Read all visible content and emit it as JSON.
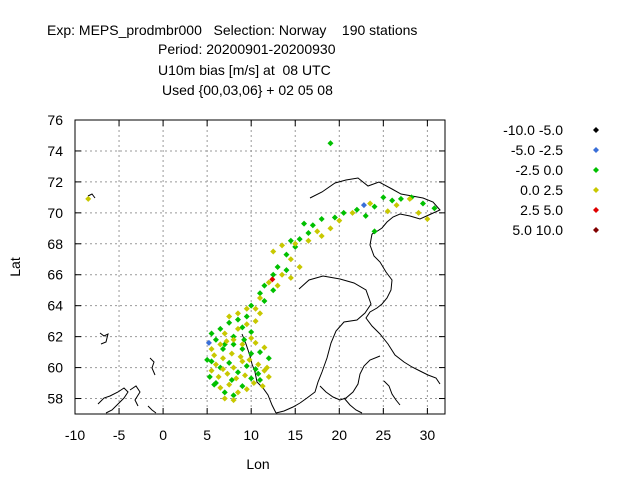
{
  "title": {
    "line1": "Exp: MEPS_prodmbr000   Selection: Norway    190 stations",
    "line2": "Period: 20200901-20200930",
    "line3": "U10m bias [m/s] at  08 UTC",
    "line4": "Used {00,03,06} + 02 05 08"
  },
  "chart_data": {
    "type": "scatter",
    "xlabel": "Lon",
    "ylabel": "Lat",
    "xlim": [
      -10,
      32
    ],
    "ylim": [
      57,
      76
    ],
    "xticks": [
      -10,
      -5,
      0,
      5,
      10,
      15,
      20,
      25,
      30
    ],
    "yticks": [
      58,
      60,
      62,
      64,
      66,
      68,
      70,
      72,
      74,
      76
    ],
    "grid": true,
    "legend_position": "right",
    "series": [
      {
        "name": "-10.0 -5.0",
        "color": "#000000",
        "points": []
      },
      {
        "name": "-5.0 -2.5",
        "color": "#3a6fd8",
        "points": [
          [
            22.8,
            70.5
          ],
          [
            5.2,
            61.6
          ]
        ]
      },
      {
        "name": "-2.5 0.0",
        "color": "#00c000",
        "points": [
          [
            19.0,
            74.5
          ],
          [
            25.0,
            71.0
          ],
          [
            26.0,
            70.8
          ],
          [
            27.0,
            70.9
          ],
          [
            28.2,
            71.0
          ],
          [
            29.5,
            70.6
          ],
          [
            30.8,
            70.3
          ],
          [
            24.0,
            70.4
          ],
          [
            23.0,
            69.8
          ],
          [
            24.0,
            68.8
          ],
          [
            22.0,
            70.2
          ],
          [
            20.5,
            70.0
          ],
          [
            19.5,
            69.7
          ],
          [
            18.0,
            69.6
          ],
          [
            17.0,
            69.2
          ],
          [
            16.5,
            68.7
          ],
          [
            15.5,
            68.3
          ],
          [
            14.5,
            68.2
          ],
          [
            16.0,
            69.3
          ],
          [
            15.0,
            67.8
          ],
          [
            14.0,
            67.3
          ],
          [
            13.0,
            66.5
          ],
          [
            12.5,
            66.0
          ],
          [
            14.0,
            66.3
          ],
          [
            11.5,
            65.3
          ],
          [
            12.5,
            65.0
          ],
          [
            11.0,
            64.8
          ],
          [
            10.0,
            64.0
          ],
          [
            11.5,
            64.3
          ],
          [
            9.5,
            63.3
          ],
          [
            8.5,
            63.1
          ],
          [
            7.5,
            62.9
          ],
          [
            6.5,
            62.5
          ],
          [
            5.5,
            62.2
          ],
          [
            6.0,
            61.8
          ],
          [
            7.0,
            61.5
          ],
          [
            8.0,
            61.5
          ],
          [
            9.0,
            61.2
          ],
          [
            10.0,
            60.9
          ],
          [
            11.0,
            61.0
          ],
          [
            12.0,
            60.6
          ],
          [
            5.5,
            60.4
          ],
          [
            6.5,
            60.0
          ],
          [
            5.3,
            59.4
          ],
          [
            6.0,
            59.0
          ],
          [
            7.0,
            58.4
          ],
          [
            8.0,
            58.2
          ],
          [
            9.0,
            58.8
          ],
          [
            10.0,
            59.3
          ],
          [
            11.0,
            59.2
          ],
          [
            10.5,
            59.9
          ],
          [
            9.5,
            60.1
          ],
          [
            8.5,
            59.7
          ],
          [
            7.5,
            60.3
          ],
          [
            10.0,
            62.3
          ],
          [
            9.0,
            62.6
          ],
          [
            8.0,
            62.0
          ],
          [
            5.0,
            60.5
          ],
          [
            5.8,
            58.9
          ],
          [
            10.8,
            59.6
          ],
          [
            9.2,
            61.8
          ],
          [
            7.8,
            59.2
          ],
          [
            6.8,
            61.2
          ]
        ]
      },
      {
        "name": "0.0 2.5",
        "color": "#c8c800",
        "points": [
          [
            -8.5,
            70.9
          ],
          [
            30.0,
            69.6
          ],
          [
            29.0,
            70.0
          ],
          [
            28.0,
            70.9
          ],
          [
            26.5,
            70.5
          ],
          [
            25.5,
            70.1
          ],
          [
            23.5,
            70.6
          ],
          [
            21.5,
            70.0
          ],
          [
            20.0,
            69.5
          ],
          [
            19.0,
            69.0
          ],
          [
            18.0,
            68.5
          ],
          [
            17.5,
            68.8
          ],
          [
            16.5,
            68.2
          ],
          [
            15.0,
            68.0
          ],
          [
            13.5,
            67.9
          ],
          [
            12.5,
            67.5
          ],
          [
            14.5,
            67.0
          ],
          [
            15.5,
            66.5
          ],
          [
            13.5,
            66.0
          ],
          [
            14.5,
            65.8
          ],
          [
            12.0,
            65.5
          ],
          [
            13.0,
            65.3
          ],
          [
            11.0,
            64.5
          ],
          [
            10.5,
            63.8
          ],
          [
            11.0,
            63.5
          ],
          [
            9.5,
            63.8
          ],
          [
            8.5,
            63.5
          ],
          [
            7.5,
            63.3
          ],
          [
            10.5,
            63.0
          ],
          [
            9.5,
            62.8
          ],
          [
            8.5,
            62.5
          ],
          [
            7.0,
            62.2
          ],
          [
            6.5,
            61.5
          ],
          [
            5.5,
            61.2
          ],
          [
            8.0,
            61.8
          ],
          [
            9.0,
            61.5
          ],
          [
            10.5,
            61.6
          ],
          [
            11.5,
            61.3
          ],
          [
            5.8,
            60.8
          ],
          [
            6.8,
            60.6
          ],
          [
            7.8,
            60.9
          ],
          [
            8.8,
            60.7
          ],
          [
            9.8,
            60.5
          ],
          [
            10.8,
            60.2
          ],
          [
            11.5,
            59.8
          ],
          [
            5.5,
            59.8
          ],
          [
            6.3,
            59.4
          ],
          [
            7.3,
            59.6
          ],
          [
            8.3,
            59.3
          ],
          [
            9.3,
            59.5
          ],
          [
            10.3,
            59.0
          ],
          [
            11.3,
            58.8
          ],
          [
            6.5,
            58.7
          ],
          [
            7.5,
            58.9
          ],
          [
            8.5,
            58.4
          ],
          [
            9.5,
            58.6
          ],
          [
            7.0,
            58.0
          ],
          [
            8.0,
            57.9
          ],
          [
            12.0,
            59.4
          ],
          [
            10.0,
            61.9
          ],
          [
            7.2,
            61.7
          ],
          [
            6.0,
            60.2
          ],
          [
            11.8,
            60.0
          ],
          [
            9.0,
            60.4
          ],
          [
            8.0,
            60.0
          ],
          [
            6.8,
            59.9
          ]
        ]
      },
      {
        "name": "2.5 5.0",
        "color": "#e00000",
        "points": [
          [
            12.4,
            65.7
          ]
        ]
      },
      {
        "name": "5.0 10.0",
        "color": "#800000",
        "points": []
      }
    ]
  }
}
